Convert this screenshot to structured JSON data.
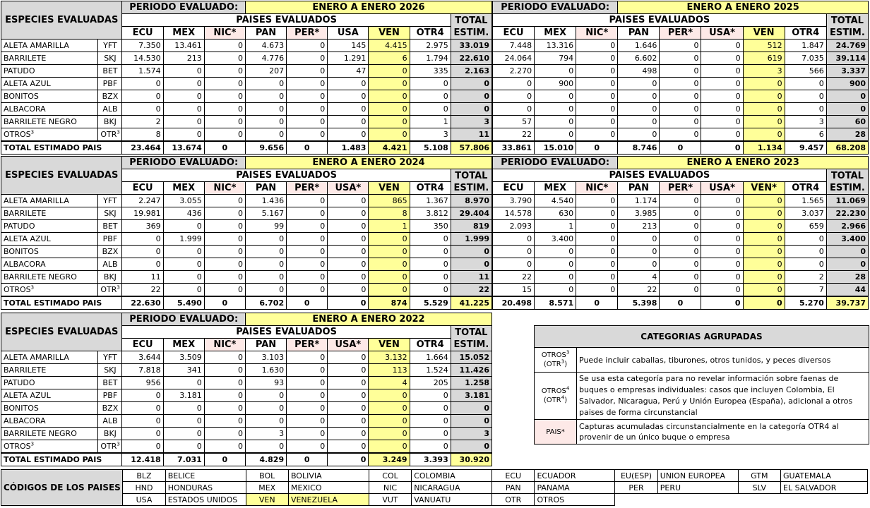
{
  "labels": {
    "especies": "ESPECIES EVALUADAS",
    "periodo": "PERIODO EVALUADO:",
    "paises": "PAISES EVALUADOS",
    "total1": "TOTAL",
    "total2": "ESTIM.",
    "total_row": "TOTAL ESTIMADO PAIS"
  },
  "species": [
    {
      "name": "ALETA AMARILLA",
      "code": "YFT"
    },
    {
      "name": "BARRILETE",
      "code": "SKJ"
    },
    {
      "name": "PATUDO",
      "code": "BET"
    },
    {
      "name": "ALETA AZUL",
      "code": "PBF"
    },
    {
      "name": "BONITOS",
      "code": "BZX"
    },
    {
      "name": "ALBACORA",
      "code": "ALB"
    },
    {
      "name": "BARRILETE NEGRO",
      "code": "BKJ"
    },
    {
      "name": "OTROS",
      "code": "OTR",
      "sup": "3"
    }
  ],
  "tables": [
    {
      "period": "ENERO A ENERO 2026",
      "cols": [
        "ECU",
        "MEX",
        "NIC*",
        "PAN",
        "PER*",
        "USA",
        "VEN",
        "OTR4"
      ],
      "rows": [
        [
          "7.350",
          "13.461",
          "0",
          "4.673",
          "0",
          "145",
          "4.415",
          "2.975",
          "33.019"
        ],
        [
          "14.530",
          "213",
          "0",
          "4.776",
          "0",
          "1.291",
          "6",
          "1.794",
          "22.610"
        ],
        [
          "1.574",
          "0",
          "0",
          "207",
          "0",
          "47",
          "0",
          "335",
          "2.163"
        ],
        [
          "0",
          "0",
          "0",
          "0",
          "0",
          "0",
          "0",
          "0",
          "0"
        ],
        [
          "0",
          "0",
          "0",
          "0",
          "0",
          "0",
          "0",
          "0",
          "0"
        ],
        [
          "0",
          "0",
          "0",
          "0",
          "0",
          "0",
          "0",
          "0",
          "0"
        ],
        [
          "2",
          "0",
          "0",
          "0",
          "0",
          "0",
          "0",
          "1",
          "3"
        ],
        [
          "8",
          "0",
          "0",
          "0",
          "0",
          "0",
          "0",
          "3",
          "11"
        ]
      ],
      "totals": [
        "23.464",
        "13.674",
        "0",
        "9.656",
        "0",
        "1.483",
        "4.421",
        "5.108",
        "57.806"
      ]
    },
    {
      "period": "ENERO A ENERO 2025",
      "cols": [
        "ECU",
        "MEX",
        "NIC*",
        "PAN",
        "PER*",
        "USA*",
        "VEN",
        "OTR4"
      ],
      "rows": [
        [
          "7.448",
          "13.316",
          "0",
          "1.646",
          "0",
          "0",
          "512",
          "1.847",
          "24.769"
        ],
        [
          "24.064",
          "794",
          "0",
          "6.602",
          "0",
          "0",
          "619",
          "7.035",
          "39.114"
        ],
        [
          "2.270",
          "0",
          "0",
          "498",
          "0",
          "0",
          "3",
          "566",
          "3.337"
        ],
        [
          "0",
          "900",
          "0",
          "0",
          "0",
          "0",
          "0",
          "0",
          "900"
        ],
        [
          "0",
          "0",
          "0",
          "0",
          "0",
          "0",
          "0",
          "0",
          "0"
        ],
        [
          "0",
          "0",
          "0",
          "0",
          "0",
          "0",
          "0",
          "0",
          "0"
        ],
        [
          "57",
          "0",
          "0",
          "0",
          "0",
          "0",
          "0",
          "3",
          "60"
        ],
        [
          "22",
          "0",
          "0",
          "0",
          "0",
          "0",
          "0",
          "6",
          "28"
        ]
      ],
      "totals": [
        "33.861",
        "15.010",
        "0",
        "8.746",
        "0",
        "0",
        "1.134",
        "9.457",
        "68.208"
      ]
    },
    {
      "period": "ENERO A ENERO 2024",
      "cols": [
        "ECU",
        "MEX",
        "NIC*",
        "PAN",
        "PER*",
        "USA*",
        "VEN",
        "OTR4"
      ],
      "rows": [
        [
          "2.247",
          "3.055",
          "0",
          "1.436",
          "0",
          "0",
          "865",
          "1.367",
          "8.970"
        ],
        [
          "19.981",
          "436",
          "0",
          "5.167",
          "0",
          "0",
          "8",
          "3.812",
          "29.404"
        ],
        [
          "369",
          "0",
          "0",
          "99",
          "0",
          "0",
          "1",
          "350",
          "819"
        ],
        [
          "0",
          "1.999",
          "0",
          "0",
          "0",
          "0",
          "0",
          "0",
          "1.999"
        ],
        [
          "0",
          "0",
          "0",
          "0",
          "0",
          "0",
          "0",
          "0",
          "0"
        ],
        [
          "0",
          "0",
          "0",
          "0",
          "0",
          "0",
          "0",
          "0",
          "0"
        ],
        [
          "11",
          "0",
          "0",
          "0",
          "0",
          "0",
          "0",
          "0",
          "11"
        ],
        [
          "22",
          "0",
          "0",
          "0",
          "0",
          "0",
          "0",
          "0",
          "22"
        ]
      ],
      "totals": [
        "22.630",
        "5.490",
        "0",
        "6.702",
        "0",
        "0",
        "874",
        "5.529",
        "41.225"
      ]
    },
    {
      "period": "ENERO A ENERO 2023",
      "cols": [
        "ECU",
        "MEX",
        "NIC*",
        "PAN",
        "PER*",
        "USA*",
        "VEN*",
        "OTR4"
      ],
      "rows": [
        [
          "3.790",
          "4.540",
          "0",
          "1.174",
          "0",
          "0",
          "0",
          "1.565",
          "11.069"
        ],
        [
          "14.578",
          "630",
          "0",
          "3.985",
          "0",
          "0",
          "0",
          "3.037",
          "22.230"
        ],
        [
          "2.093",
          "1",
          "0",
          "213",
          "0",
          "0",
          "0",
          "659",
          "2.966"
        ],
        [
          "0",
          "3.400",
          "0",
          "0",
          "0",
          "0",
          "0",
          "0",
          "3.400"
        ],
        [
          "0",
          "0",
          "0",
          "0",
          "0",
          "0",
          "0",
          "0",
          "0"
        ],
        [
          "0",
          "0",
          "0",
          "0",
          "0",
          "0",
          "0",
          "0",
          "0"
        ],
        [
          "22",
          "0",
          "0",
          "4",
          "0",
          "0",
          "0",
          "2",
          "28"
        ],
        [
          "15",
          "0",
          "0",
          "22",
          "0",
          "0",
          "0",
          "7",
          "44"
        ]
      ],
      "totals": [
        "20.498",
        "8.571",
        "0",
        "5.398",
        "0",
        "0",
        "0",
        "5.270",
        "39.737"
      ]
    },
    {
      "period": "ENERO A ENERO 2022",
      "cols": [
        "ECU",
        "MEX",
        "NIC*",
        "PAN",
        "PER*",
        "USA*",
        "VEN",
        "OTR4"
      ],
      "rows": [
        [
          "3.644",
          "3.509",
          "0",
          "3.103",
          "0",
          "0",
          "3.132",
          "1.664",
          "15.052"
        ],
        [
          "7.818",
          "341",
          "0",
          "1.630",
          "0",
          "0",
          "113",
          "1.524",
          "11.426"
        ],
        [
          "956",
          "0",
          "0",
          "93",
          "0",
          "0",
          "4",
          "205",
          "1.258"
        ],
        [
          "0",
          "3.181",
          "0",
          "0",
          "0",
          "0",
          "0",
          "0",
          "3.181"
        ],
        [
          "0",
          "0",
          "0",
          "0",
          "0",
          "0",
          "0",
          "0",
          "0"
        ],
        [
          "0",
          "0",
          "0",
          "0",
          "0",
          "0",
          "0",
          "0",
          "0"
        ],
        [
          "0",
          "0",
          "0",
          "3",
          "0",
          "0",
          "0",
          "0",
          "3"
        ],
        [
          "0",
          "0",
          "0",
          "0",
          "0",
          "0",
          "0",
          "0",
          "0"
        ]
      ],
      "totals": [
        "12.418",
        "7.031",
        "0",
        "4.829",
        "0",
        "0",
        "3.249",
        "3.393",
        "30.920"
      ]
    }
  ],
  "legend": {
    "title": "CATEGORIAS AGRUPADAS",
    "items": [
      {
        "label1": "OTROS",
        "sup1": "3",
        "label2": "(OTR",
        "sup2": "3",
        "label2_end": ")",
        "text": "Puede incluir caballas, tiburones, otros tunidos, y peces diversos"
      },
      {
        "label1": "OTROS",
        "sup1": "4",
        "label2": "(OTR",
        "sup2": "4",
        "label2_end": ")",
        "text": "Se usa esta categoría para no revelar información sobre faenas de buques o empresas individuales: casos que incluyen Colombia, El Salvador, Nicaragua, Perú y Unión Europea (España), adicional a otros paises de forma circunstancial"
      },
      {
        "label1": "PAIS*",
        "text": "Capturas acumuladas circunstancialmente en la categoría OTR4 al provenir de un único buque o empresa"
      }
    ]
  },
  "codes": {
    "title": "CÓDIGOS DE LOS PAISES",
    "rows": [
      [
        [
          "BLZ",
          "BELICE"
        ],
        [
          "BOL",
          "BOLIVIA"
        ],
        [
          "COL",
          "COLOMBIA"
        ],
        [
          "ECU",
          "ECUADOR"
        ],
        [
          "EU(ESP)",
          "UNION EUROPEA"
        ],
        [
          "GTM",
          "GUATEMALA"
        ]
      ],
      [
        [
          "HND",
          "HONDURAS"
        ],
        [
          "MEX",
          "MEXICO"
        ],
        [
          "NIC",
          "NICARAGUA"
        ],
        [
          "PAN",
          "PANAMA"
        ],
        [
          "PER",
          "PERU"
        ],
        [
          "SLV",
          "EL SALVADOR"
        ]
      ],
      [
        [
          "USA",
          "ESTADOS UNIDOS"
        ],
        [
          "VEN",
          "VENEZUELA"
        ],
        [
          "VUT",
          "VANUATU"
        ],
        [
          "OTR",
          "OTROS"
        ]
      ]
    ]
  },
  "colors": {
    "gray": "#d9d9d9",
    "yellow": "#ffff99",
    "pink": "#fde9e7"
  }
}
